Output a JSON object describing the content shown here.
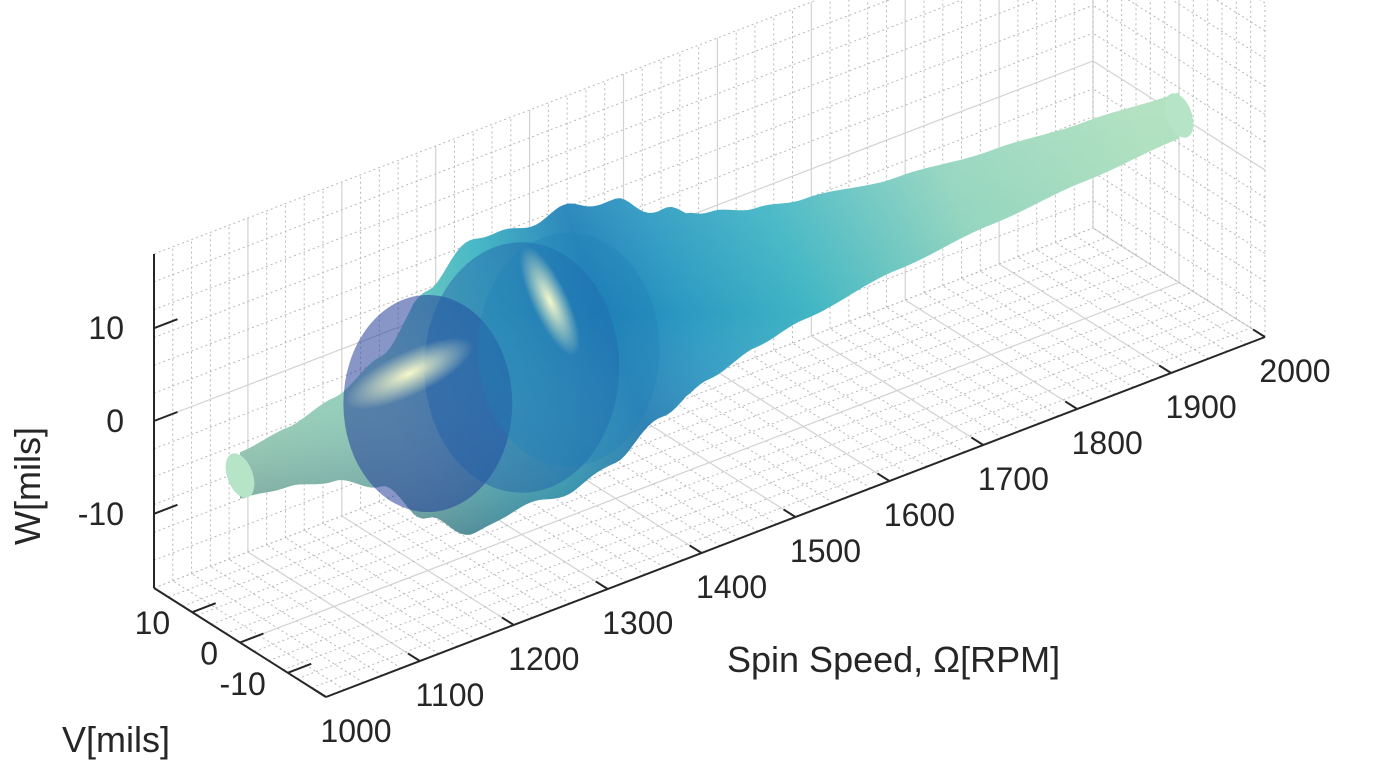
{
  "chart_data": {
    "type": "surface3d",
    "title": "",
    "xlabel": "Spin Speed, Ω[RPM]",
    "ylabel": "V[mils]",
    "zlabel": "W[mils]",
    "x_ticks": [
      "1000",
      "1100",
      "1200",
      "1300",
      "1400",
      "1500",
      "1600",
      "1700",
      "1800",
      "1900",
      "2000"
    ],
    "y_ticks": [
      "-10",
      "0",
      "10"
    ],
    "z_ticks": [
      "-10",
      "0",
      "10"
    ],
    "xlim": [
      1000,
      2000
    ],
    "ylim": [
      -18,
      18
    ],
    "zlim": [
      -18,
      18
    ],
    "grid": true,
    "colormap": [
      "#a6ddb8",
      "#41b6c4",
      "#1f80b8",
      "#243f99",
      "#081d58",
      "#ffffcc"
    ],
    "envelope": {
      "x": [
        1000,
        1050,
        1100,
        1150,
        1200,
        1250,
        1300,
        1350,
        1400,
        1450,
        1500,
        1550,
        1600,
        1700,
        1800,
        1900,
        2000
      ],
      "radius": [
        2.5,
        3.2,
        4.5,
        7.0,
        12.5,
        16.0,
        15.0,
        15.5,
        14.0,
        11.0,
        9.0,
        7.5,
        6.5,
        5.0,
        4.0,
        3.2,
        2.5
      ]
    }
  }
}
